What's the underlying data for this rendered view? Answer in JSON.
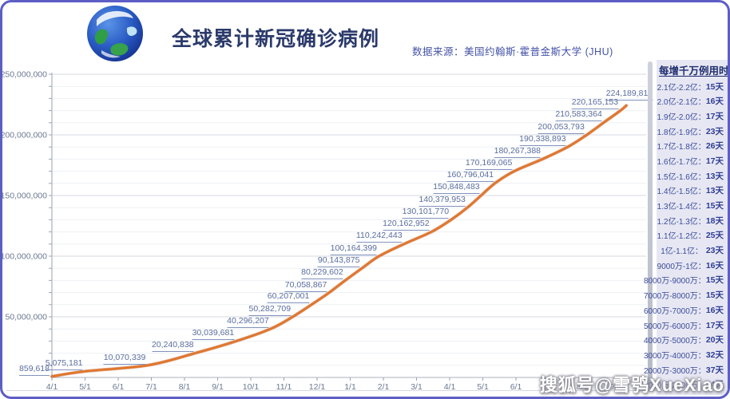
{
  "header": {
    "title": "全球累计新冠确诊病例",
    "source": "数据来源：美国约翰斯·霍普金斯大学 (JHU)"
  },
  "watermark": "搜狐号@雪鸮XueXiao",
  "sidebar": {
    "title": "每增千万例用时",
    "rows": [
      {
        "range": "2.1亿-2.2亿：",
        "days": "15天"
      },
      {
        "range": "2.0亿-2.1亿：",
        "days": "16天"
      },
      {
        "range": "1.9亿-2.0亿：",
        "days": "17天"
      },
      {
        "range": "1.8亿-1.9亿：",
        "days": "23天"
      },
      {
        "range": "1.7亿-1.8亿：",
        "days": "26天"
      },
      {
        "range": "1.6亿-1.7亿：",
        "days": "17天"
      },
      {
        "range": "1.5亿-1.6亿：",
        "days": "13天"
      },
      {
        "range": "1.4亿-1.5亿：",
        "days": "13天"
      },
      {
        "range": "1.3亿-1.4亿：",
        "days": "15天"
      },
      {
        "range": "1.2亿-1.3亿：",
        "days": "18天"
      },
      {
        "range": "1.1亿-1.2亿：",
        "days": "25天"
      },
      {
        "range": "1亿-1.1亿：",
        "days": "23天"
      },
      {
        "range": "9000万-1亿：",
        "days": "16天"
      },
      {
        "range": "8000万-9000万：",
        "days": "15天"
      },
      {
        "range": "7000万-8000万：",
        "days": "15天"
      },
      {
        "range": "6000万-7000万：",
        "days": "16天"
      },
      {
        "range": "5000万-6000万：",
        "days": "17天"
      },
      {
        "range": "4000万-5000万：",
        "days": "20天"
      },
      {
        "range": "3000万-4000万：",
        "days": "32天"
      },
      {
        "range": "2000万-3000万：",
        "days": "37天"
      },
      {
        "range": "1000万-2000万：",
        "days": "44天"
      }
    ]
  },
  "chart_data": {
    "type": "line",
    "title": "全球累计新冠确诊病例",
    "xlabel": "",
    "ylabel": "",
    "ylim": [
      0,
      250000000
    ],
    "grid": true,
    "line_color": "#e0762c",
    "y_ticks": [
      "50,000,000",
      "100,000,000",
      "150,000,000",
      "200,000,000",
      "250,000,000"
    ],
    "x_ticks": [
      "4/1",
      "5/1",
      "6/1",
      "7/1",
      "8/1",
      "9/1",
      "10/1",
      "11/1",
      "12/1",
      "1/1",
      "2/1",
      "3/1",
      "4/1",
      "5/1",
      "6/1",
      "7/1",
      "8/1",
      "9/1"
    ],
    "points": [
      {
        "label": "859,618",
        "value": 859618,
        "m": 0.0
      },
      {
        "label": "5,075,181",
        "value": 5075181,
        "m": 1.0
      },
      {
        "label": "10,070,339",
        "value": 10070339,
        "m": 2.9
      },
      {
        "label": "20,240,838",
        "value": 20240838,
        "m": 4.35
      },
      {
        "label": "30,039,681",
        "value": 30039681,
        "m": 5.57
      },
      {
        "label": "40,296,207",
        "value": 40296207,
        "m": 6.62
      },
      {
        "label": "50,282,709",
        "value": 50282709,
        "m": 7.28
      },
      {
        "label": "60,207,001",
        "value": 60207001,
        "m": 7.84
      },
      {
        "label": "70,058,867",
        "value": 70058867,
        "m": 8.37
      },
      {
        "label": "80,229,602",
        "value": 80229602,
        "m": 8.86
      },
      {
        "label": "90,143,875",
        "value": 90143875,
        "m": 9.36
      },
      {
        "label": "100,164,399",
        "value": 100164399,
        "m": 9.88
      },
      {
        "label": "110,242,443",
        "value": 110242443,
        "m": 10.64
      },
      {
        "label": "120,162,952",
        "value": 120162952,
        "m": 11.46
      },
      {
        "label": "130,101,770",
        "value": 130101770,
        "m": 12.05
      },
      {
        "label": "140,379,953",
        "value": 140379953,
        "m": 12.55
      },
      {
        "label": "150,848,483",
        "value": 150848483,
        "m": 12.98
      },
      {
        "label": "160,796,041",
        "value": 160796041,
        "m": 13.4
      },
      {
        "label": "170,169,065",
        "value": 170169065,
        "m": 13.96
      },
      {
        "label": "180,267,388",
        "value": 180267388,
        "m": 14.82
      },
      {
        "label": "190,338,893",
        "value": 190338893,
        "m": 15.58
      },
      {
        "label": "200,053,793",
        "value": 200053793,
        "m": 16.14
      },
      {
        "label": "210,583,364",
        "value": 210583364,
        "m": 16.67
      },
      {
        "label": "220,165,153",
        "value": 220165153,
        "m": 17.16
      },
      {
        "label": "224,189,819",
        "value": 224189819,
        "m": 17.33
      }
    ]
  },
  "colors": {
    "accent_border": "#5d5dc6",
    "title": "#2b3a6b",
    "source": "#4553a8",
    "line": "#e0762c",
    "point_label": "#5a6d9e",
    "sidebar_bg": "#e7e7f3",
    "sidebar_text": "#3b4c9b"
  }
}
